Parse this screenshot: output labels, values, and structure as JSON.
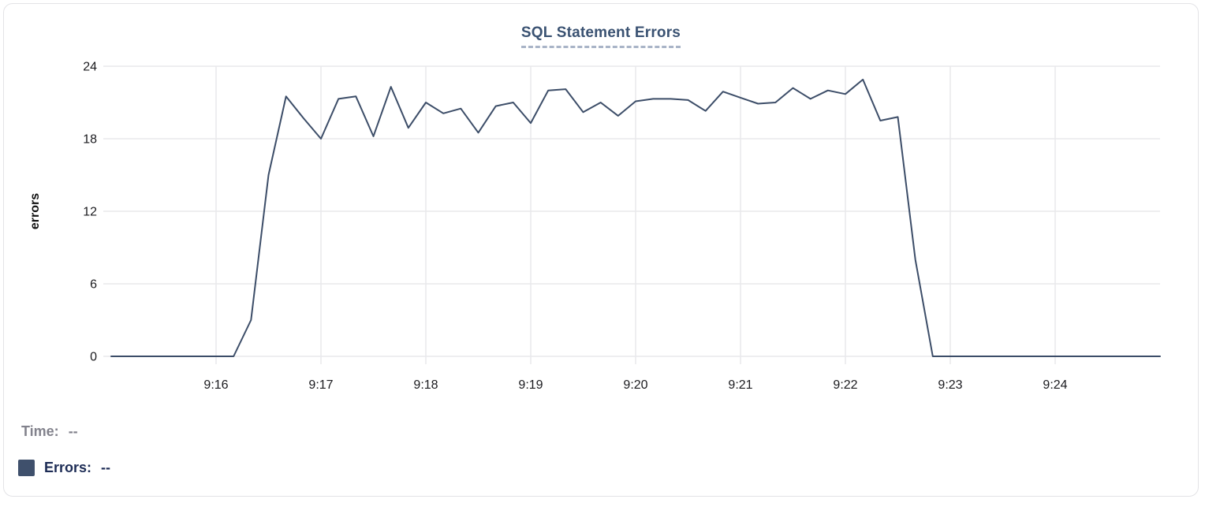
{
  "chart_data": {
    "type": "line",
    "title": "SQL Statement Errors",
    "xlabel": "",
    "ylabel": "errors",
    "ylim": [
      0,
      24
    ],
    "yticks": [
      0,
      6,
      12,
      18,
      24
    ],
    "xticks": [
      "9:16",
      "9:17",
      "9:18",
      "9:19",
      "9:20",
      "9:21",
      "9:22",
      "9:23",
      "9:24"
    ],
    "x_range": [
      "9:15:00",
      "9:25:00"
    ],
    "grid": true,
    "legend_position": "bottom-left",
    "series": [
      {
        "name": "Errors",
        "color": "#3c4d68",
        "x": [
          "9:15:00",
          "9:15:10",
          "9:15:20",
          "9:15:30",
          "9:15:40",
          "9:15:50",
          "9:16:00",
          "9:16:10",
          "9:16:20",
          "9:16:30",
          "9:16:40",
          "9:16:50",
          "9:17:00",
          "9:17:10",
          "9:17:20",
          "9:17:30",
          "9:17:40",
          "9:17:50",
          "9:18:00",
          "9:18:10",
          "9:18:20",
          "9:18:30",
          "9:18:40",
          "9:18:50",
          "9:19:00",
          "9:19:10",
          "9:19:20",
          "9:19:30",
          "9:19:40",
          "9:19:50",
          "9:20:00",
          "9:20:10",
          "9:20:20",
          "9:20:30",
          "9:20:40",
          "9:20:50",
          "9:21:00",
          "9:21:10",
          "9:21:20",
          "9:21:30",
          "9:21:40",
          "9:21:50",
          "9:22:00",
          "9:22:10",
          "9:22:20",
          "9:22:30",
          "9:22:40",
          "9:22:50",
          "9:23:00",
          "9:23:10",
          "9:23:20",
          "9:23:30",
          "9:23:40",
          "9:23:50",
          "9:24:00",
          "9:24:10",
          "9:24:20",
          "9:24:30",
          "9:24:40",
          "9:24:50",
          "9:25:00"
        ],
        "values": [
          0,
          0,
          0,
          0,
          0,
          0,
          0,
          0,
          3,
          15,
          21.5,
          19.7,
          18,
          21.3,
          21.5,
          18.2,
          22.3,
          18.9,
          21,
          20.1,
          20.5,
          18.5,
          20.7,
          21,
          19.3,
          22,
          22.1,
          20.2,
          21,
          19.9,
          21.1,
          21.3,
          21.3,
          21.2,
          20.3,
          21.9,
          21.4,
          20.9,
          21,
          22.2,
          21.3,
          22,
          21.7,
          22.9,
          19.5,
          19.8,
          8,
          0,
          0,
          0,
          0,
          0,
          0,
          0,
          0,
          0,
          0,
          0,
          0,
          0,
          0
        ]
      }
    ]
  },
  "legend": {
    "time_label": "Time:",
    "time_value": "--",
    "errors_label": "Errors:",
    "errors_value": "--",
    "swatch_color": "#3f506c"
  },
  "colors": {
    "line": "#3c4d68",
    "grid": "#e9e9ec",
    "tick_label": "#1a1a1e",
    "axis_label": "#111111",
    "title": "#3a5272",
    "title_underline": "#a9b4c7",
    "time_text": "#82828c",
    "errors_text": "#1d2c55",
    "card_border": "#e3e3e6",
    "background": "#ffffff"
  }
}
